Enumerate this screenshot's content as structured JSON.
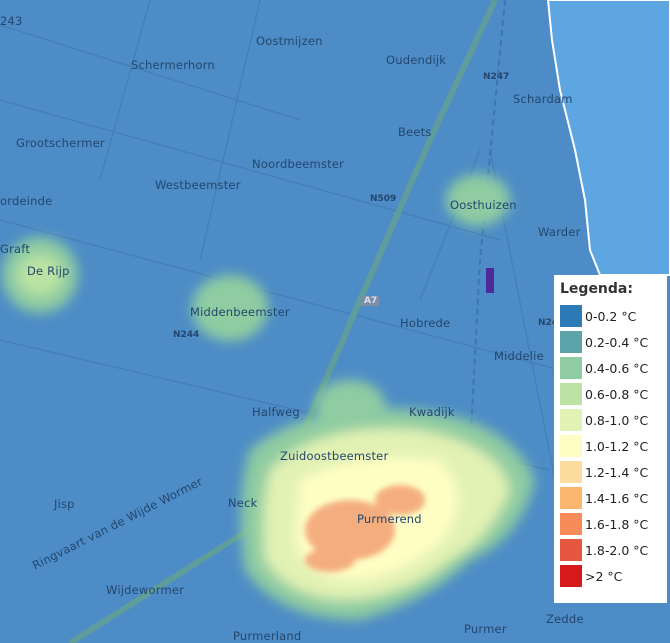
{
  "map": {
    "places": [
      "243",
      "Schermerhorn",
      "Oostmijzen",
      "Oudendijk",
      "N247",
      "Schardam",
      "Grootschermer",
      "Beets",
      "Noordbeemster",
      "Westbeemster",
      "ordeinde",
      "N509",
      "Oosthuizen",
      "Warder",
      "Graft",
      "De Rijp",
      "Middenbeemster",
      "N244",
      "A7",
      "Hobrede",
      "N24",
      "Middelie",
      "Halfweg",
      "Kwadijk",
      "Zuidoostbeemster",
      "Jisp",
      "Neck",
      "Purmerend",
      "Ringvaart van de Wijde Wormer",
      "Wijdewormer",
      "Purmerland",
      "Purmer",
      "Zedde"
    ]
  },
  "legend": {
    "title": "Legenda:",
    "items": [
      {
        "label": "0-0.2 °C",
        "color": "#2c7bb6"
      },
      {
        "label": "0.2-0.4 °C",
        "color": "#5ba3a9"
      },
      {
        "label": "0.4-0.6 °C",
        "color": "#8fcca1"
      },
      {
        "label": "0.6-0.8 °C",
        "color": "#bce3a3"
      },
      {
        "label": "0.8-1.0 °C",
        "color": "#e2f2b4"
      },
      {
        "label": "1.0-1.2 °C",
        "color": "#fefec4"
      },
      {
        "label": "1.2-1.4 °C",
        "color": "#fddc9f"
      },
      {
        "label": "1.4-1.6 °C",
        "color": "#fbb56f"
      },
      {
        "label": "1.6-1.8 °C",
        "color": "#f68c59"
      },
      {
        "label": "1.8-2.0 °C",
        "color": "#e65741"
      },
      {
        "label": ">2 °C",
        "color": "#d7191c"
      }
    ]
  }
}
